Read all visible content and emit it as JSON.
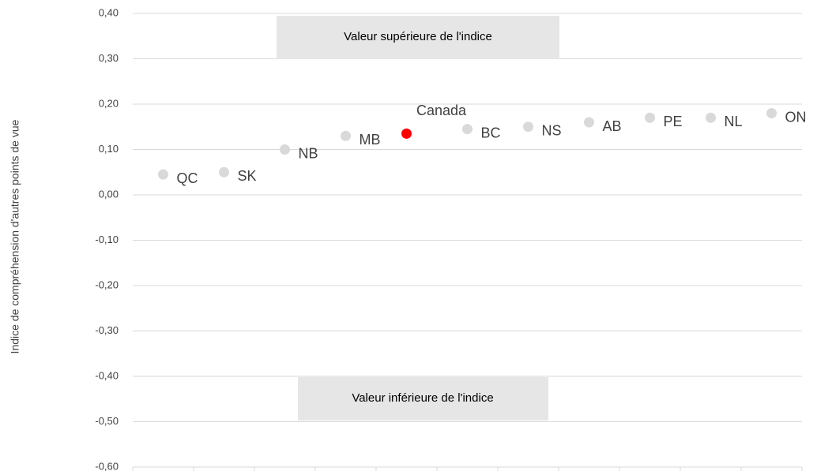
{
  "chart_data": {
    "type": "dot",
    "y_label": "Indice de compréhension d'autres points de vue",
    "categories": [
      "QC",
      "SK",
      "NB",
      "MB",
      "Canada",
      "BC",
      "NS",
      "AB",
      "PE",
      "NL",
      "ON"
    ],
    "values": [
      0.045,
      0.05,
      0.1,
      0.13,
      0.135,
      0.145,
      0.15,
      0.16,
      0.17,
      0.17,
      0.18
    ],
    "color": "#d9d9d9",
    "colors": [
      "#d9d9d9",
      "#d9d9d9",
      "#d9d9d9",
      "#d9d9d9",
      "#ff0000",
      "#d9d9d9",
      "#d9d9d9",
      "#d9d9d9",
      "#d9d9d9",
      "#d9d9d9",
      "#d9d9d9"
    ],
    "ylim": [
      -0.6,
      0.4
    ],
    "yticks": [
      {
        "value": 0.4,
        "label": "0,40"
      },
      {
        "value": 0.3,
        "label": "0,30"
      },
      {
        "value": 0.2,
        "label": "0,20"
      },
      {
        "value": 0.1,
        "label": "0,10"
      },
      {
        "value": 0,
        "label": "0,00"
      },
      {
        "value": -0.1,
        "label": "-0,10"
      },
      {
        "value": -0.2,
        "label": "-0,20"
      },
      {
        "value": -0.3,
        "label": "-0,30"
      },
      {
        "value": -0.4,
        "label": "-0,40"
      },
      {
        "value": -0.5,
        "label": "-0,50"
      },
      {
        "value": -0.6,
        "label": "-0,60"
      }
    ],
    "grid": true,
    "annotations": [
      "Valeur supérieure de l'indice",
      "Valeur inférieure de l'indice"
    ]
  }
}
